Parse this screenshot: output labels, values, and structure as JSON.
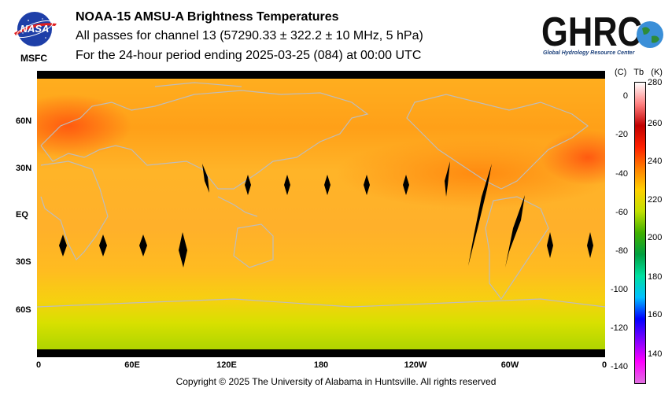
{
  "header": {
    "title": "NOAA-15 AMSU-A Brightness Temperatures",
    "line2": "All passes for channel 13 (57290.33 ± 322.2 ± 10 MHz, 5 hPa)",
    "line3": "For the 24-hour period ending 2025-03-25 (084) at 00:00 UTC"
  },
  "logos": {
    "nasa_text": "NASA",
    "msfc": "MSFC",
    "ghrc_text": "GHRC",
    "ghrc_subtitle": "Global Hydrology Resource Center"
  },
  "map": {
    "x_ticks": [
      "0",
      "60E",
      "120E",
      "180",
      "120W",
      "60W",
      "0"
    ],
    "y_ticks": [
      "60N",
      "30N",
      "EQ",
      "30S",
      "60S"
    ]
  },
  "colorbar": {
    "units_c": "(C)",
    "units_tb": "Tb",
    "units_k": "(K)",
    "celsius_ticks": [
      "0",
      "-20",
      "-40",
      "-60",
      "-80",
      "-100",
      "-120",
      "-140"
    ],
    "kelvin_ticks": [
      "280",
      "260",
      "240",
      "220",
      "200",
      "180",
      "160",
      "140"
    ],
    "kelvin_range": [
      133,
      280
    ],
    "colors": [
      "#e070e0",
      "#ff00ff",
      "#8000ff",
      "#0000ff",
      "#00c0ff",
      "#00e0a0",
      "#00a040",
      "#40b000",
      "#c0e000",
      "#ffd000",
      "#ff8000",
      "#ff2000",
      "#c00000",
      "#ff8080",
      "#ffffff"
    ]
  },
  "footer": {
    "copyright": "Copyright © 2025 The University of Alabama in Huntsville.  All rights reserved"
  }
}
